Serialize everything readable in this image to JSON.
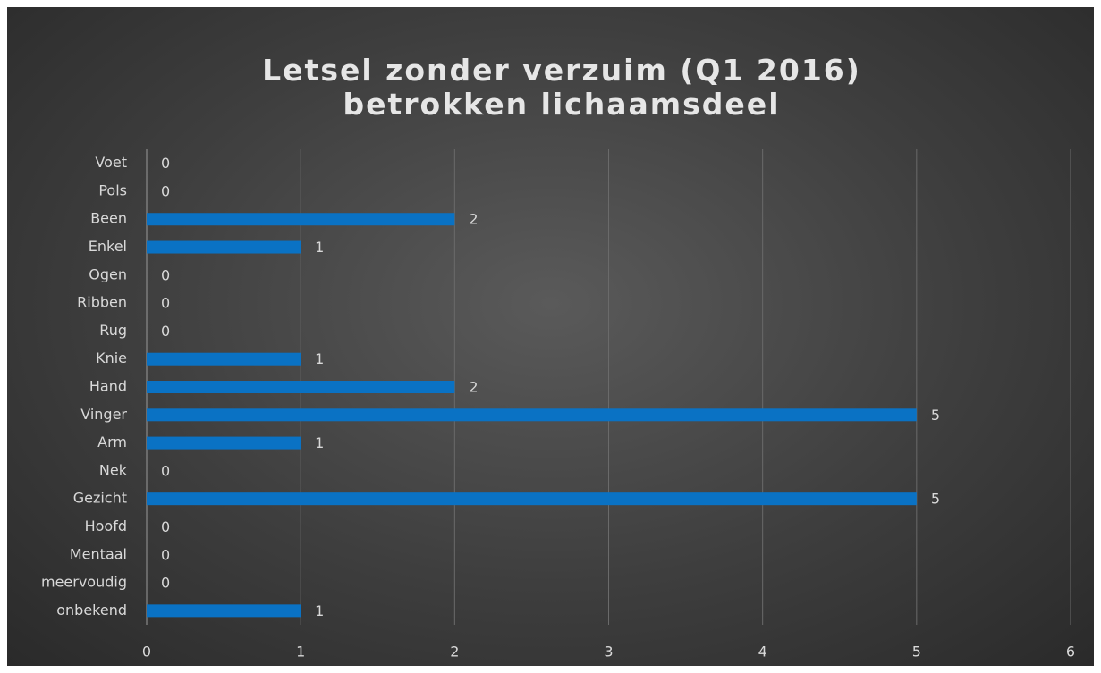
{
  "chart_data": {
    "type": "bar",
    "orientation": "horizontal",
    "title": "Letsel zonder verzuim (Q1 2016) betrokken lichaamsdeel",
    "categories": [
      "Voet",
      "Pols",
      "Been",
      "Enkel",
      "Ogen",
      "Ribben",
      "Rug",
      "Knie",
      "Hand",
      "Vinger",
      "Arm",
      "Nek",
      "Gezicht",
      "Hoofd",
      "Mentaal",
      "meervoudig",
      "onbekend"
    ],
    "values": [
      0,
      0,
      2,
      1,
      0,
      0,
      0,
      1,
      2,
      5,
      1,
      0,
      5,
      0,
      0,
      0,
      1
    ],
    "color": "#0a72c4",
    "xlim": [
      0,
      6
    ],
    "xticks": [
      0,
      1,
      2,
      3,
      4,
      5,
      6
    ],
    "grid": true
  }
}
